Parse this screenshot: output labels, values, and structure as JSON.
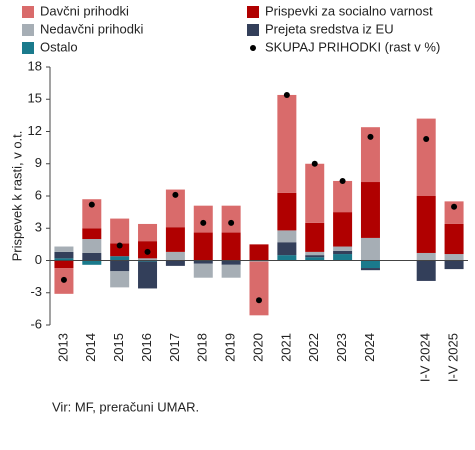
{
  "chart_data": {
    "type": "bar",
    "ylabel": "Prispevek k rasti, v o.t.",
    "source": "Vir: MF, preračuni UMAR.",
    "categories": [
      "2013",
      "2014",
      "2015",
      "2016",
      "2017",
      "2018",
      "2019",
      "2020",
      "2021",
      "2022",
      "2023",
      "2024",
      null,
      "I-V 2024",
      "I-V 2025"
    ],
    "series": [
      {
        "name": "Davčni prihodki",
        "color": "#d96b6b",
        "values": [
          -2.4,
          2.7,
          2.3,
          1.6,
          3.5,
          2.5,
          2.5,
          -5.0,
          9.1,
          5.5,
          2.9,
          5.1,
          null,
          7.2,
          2.1
        ]
      },
      {
        "name": "Prispevki za socialno varnost",
        "color": "#b00000",
        "values": [
          -0.7,
          1.0,
          1.2,
          1.6,
          2.3,
          2.6,
          2.6,
          1.5,
          3.5,
          2.7,
          3.2,
          5.2,
          null,
          5.3,
          2.8
        ]
      },
      {
        "name": "Nedavčni prihodki",
        "color": "#a6aeb5",
        "values": [
          0.5,
          1.3,
          -1.5,
          0.2,
          0.8,
          -1.3,
          -1.2,
          -0.1,
          1.1,
          0.3,
          0.4,
          2.1,
          null,
          0.7,
          0.6
        ]
      },
      {
        "name": "Prejeta sredstva iz EU",
        "color": "#333f5a",
        "values": [
          0.6,
          0.7,
          -1.0,
          -2.5,
          -0.5,
          -0.3,
          -0.4,
          0,
          1.2,
          0.2,
          0.3,
          -0.2,
          null,
          -1.9,
          -0.8
        ]
      },
      {
        "name": "Ostalo",
        "color": "#1a7a8c",
        "values": [
          0.2,
          -0.4,
          0.4,
          -0.1,
          0,
          0,
          0,
          0,
          0.5,
          0.3,
          0.6,
          -0.7,
          null,
          0,
          0
        ]
      },
      {
        "name": "SKUPAJ PRIHODKI (rast v %)",
        "color": "#000000",
        "type": "dot",
        "values": [
          -1.8,
          5.2,
          1.4,
          0.8,
          6.1,
          3.5,
          3.5,
          -3.7,
          15.4,
          9.0,
          7.4,
          11.5,
          null,
          11.3,
          5.0
        ]
      }
    ],
    "ylim": [
      -6,
      18
    ],
    "yticks": [
      -6,
      -3,
      0,
      3,
      6,
      9,
      12,
      15,
      18
    ],
    "grid": false
  }
}
